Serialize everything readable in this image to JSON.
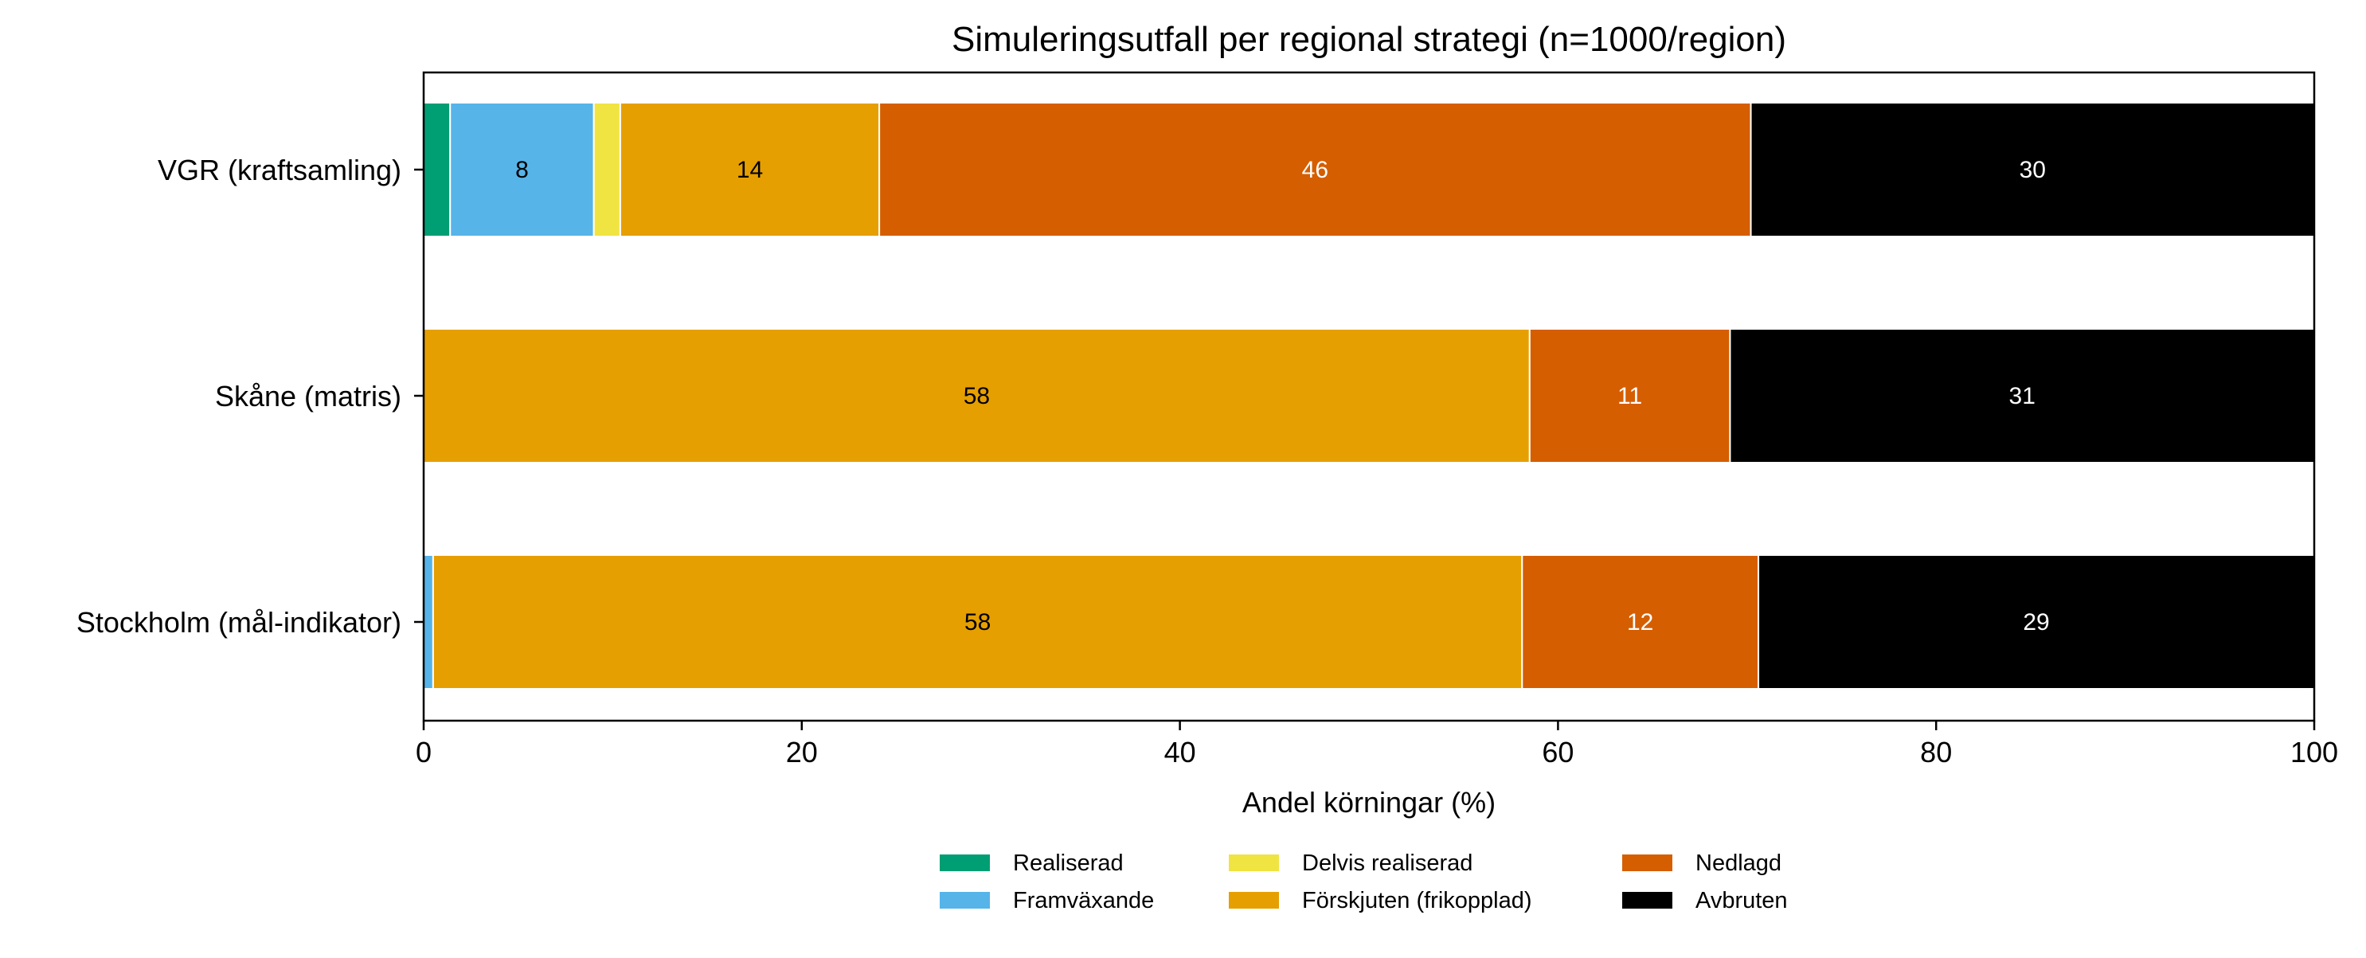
{
  "chart_data": {
    "type": "bar",
    "orientation": "horizontal",
    "stacked": true,
    "title": "Simuleringsutfall per regional strategi (n=1000/region)",
    "xlabel": "Andel körningar (%)",
    "ylabel": "",
    "xlim": [
      0,
      100
    ],
    "xticks": [
      0,
      20,
      40,
      60,
      80,
      100
    ],
    "grid": false,
    "legend_position": "bottom-center",
    "categories": [
      "VGR (kraftsamling)",
      "Skåne (matris)",
      "Stockholm (mål-indikator)"
    ],
    "series": [
      {
        "name": "Realiserad",
        "color": "#009E73",
        "values": [
          1.4,
          0,
          0
        ],
        "labels": [
          "",
          "",
          ""
        ]
      },
      {
        "name": "Framväxande",
        "color": "#56B4E9",
        "values": [
          7.6,
          0,
          0.5
        ],
        "labels": [
          "8",
          "",
          ""
        ]
      },
      {
        "name": "Delvis realiserad",
        "color": "#F0E442",
        "values": [
          1.4,
          0,
          0
        ],
        "labels": [
          "",
          "",
          ""
        ]
      },
      {
        "name": "Förskjuten (frikopplad)",
        "color": "#E69F00",
        "values": [
          13.7,
          58.5,
          57.6
        ],
        "labels": [
          "14",
          "58",
          "58"
        ]
      },
      {
        "name": "Nedlagd",
        "color": "#D55E00",
        "values": [
          46.1,
          10.6,
          12.5
        ],
        "labels": [
          "46",
          "11",
          "12"
        ]
      },
      {
        "name": "Avbruten",
        "color": "#000000",
        "values": [
          29.8,
          30.9,
          29.4
        ],
        "labels": [
          "30",
          "31",
          "29"
        ]
      }
    ]
  }
}
